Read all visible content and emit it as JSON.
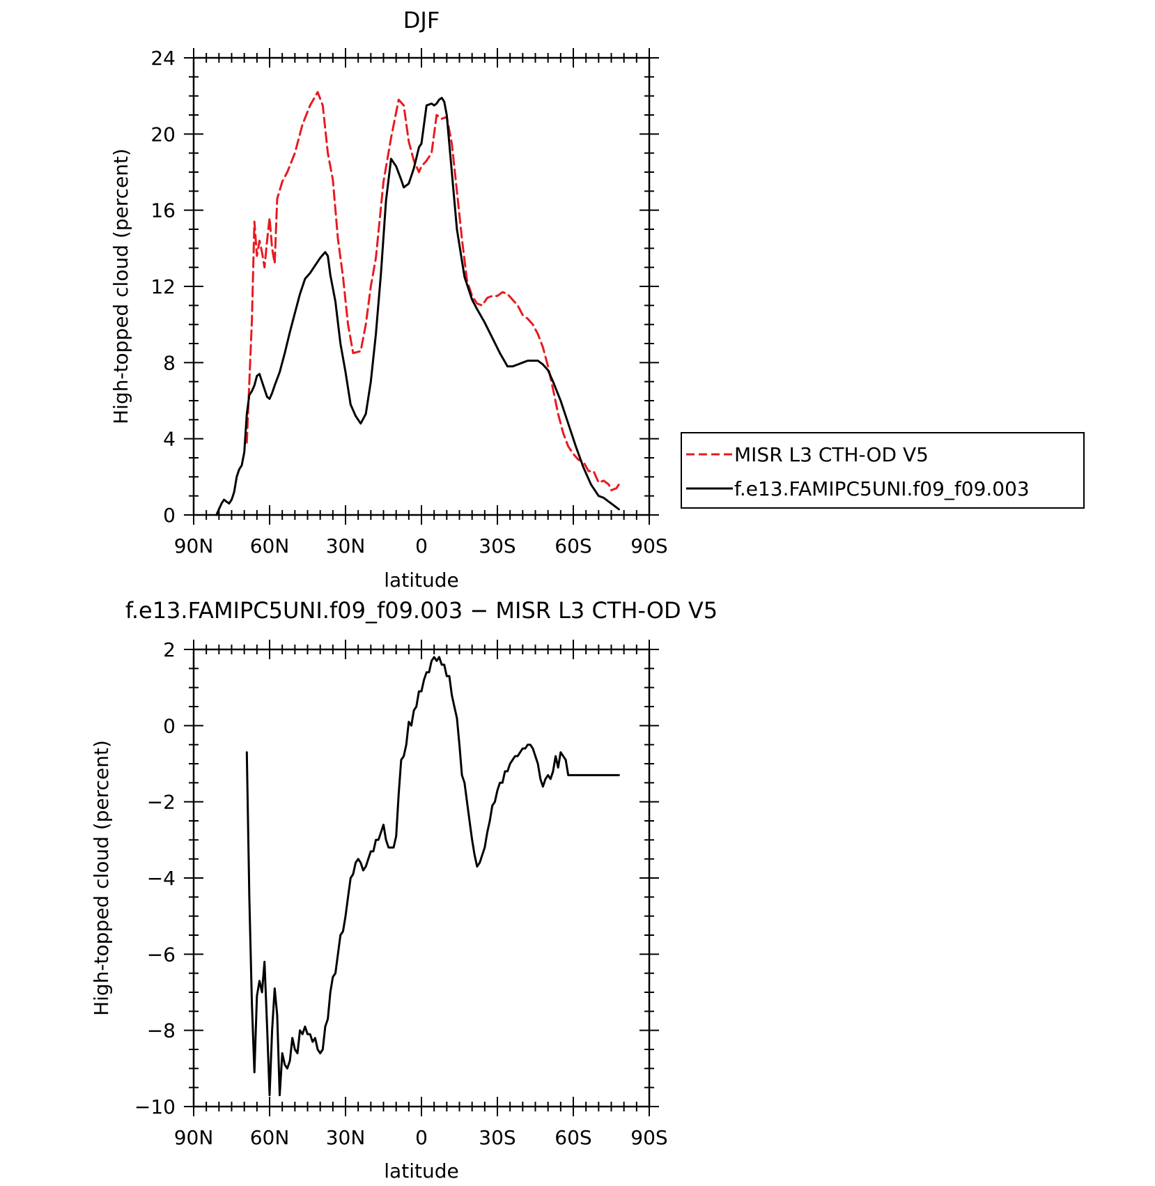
{
  "colors": {
    "model": "#000000",
    "obs": "#e8191f"
  },
  "chart_data": [
    {
      "type": "line",
      "title": "DJF",
      "xlabel": "latitude",
      "ylabel": "High-topped cloud (percent)",
      "xlim": [
        90,
        -90
      ],
      "ylim": [
        0,
        24
      ],
      "xticks": [
        90,
        60,
        30,
        0,
        -30,
        -60,
        -90
      ],
      "xtick_labels": [
        "90N",
        "60N",
        "30N",
        "0",
        "30S",
        "60S",
        "90S"
      ],
      "yticks": [
        0,
        4,
        8,
        12,
        16,
        20,
        24
      ],
      "ytick_labels": [
        "0",
        "4",
        "8",
        "12",
        "16",
        "20",
        "24"
      ],
      "legend": {
        "position": "right",
        "entries": [
          "MISR L3 CTH-OD V5",
          "f.e13.FAMIPC5UNI.f09_f09.003"
        ]
      },
      "series": [
        {
          "name": "MISR L3 CTH-OD V5",
          "color": "#e8191f",
          "style": "dashed",
          "x": [
            69,
            67,
            66,
            65,
            64,
            63,
            62,
            61,
            60,
            59,
            58,
            57,
            55,
            53,
            50,
            47,
            44,
            41,
            39,
            37,
            35,
            33,
            31,
            29,
            27,
            24,
            22,
            20,
            18,
            15,
            12,
            9,
            7,
            5,
            3,
            1,
            0,
            -2,
            -4,
            -6,
            -8,
            -10,
            -12,
            -14,
            -16,
            -18,
            -20,
            -22,
            -24,
            -26,
            -28,
            -30,
            -32,
            -34,
            -36,
            -38,
            -40,
            -42,
            -44,
            -46,
            -48,
            -50,
            -52,
            -54,
            -56,
            -58,
            -60,
            -62,
            -64,
            -66,
            -68,
            -70,
            -72,
            -74,
            -75,
            -77,
            -78
          ],
          "y": [
            3.8,
            10.2,
            15.4,
            13.6,
            14.4,
            13.8,
            13.0,
            14.4,
            15.6,
            14.0,
            13.2,
            16.6,
            17.5,
            18.0,
            19.0,
            20.5,
            21.5,
            22.2,
            21.5,
            19.0,
            17.6,
            14.5,
            12.5,
            10.0,
            8.5,
            8.6,
            10.0,
            12.0,
            13.5,
            17.5,
            19.8,
            21.8,
            21.5,
            19.6,
            18.6,
            18.0,
            18.3,
            18.6,
            19.0,
            21.0,
            20.8,
            20.9,
            19.5,
            17.0,
            14.5,
            12.3,
            11.5,
            11.1,
            11.0,
            11.4,
            11.5,
            11.5,
            11.7,
            11.6,
            11.3,
            11.0,
            10.5,
            10.3,
            10.0,
            9.5,
            8.8,
            7.8,
            6.6,
            5.3,
            4.3,
            3.6,
            3.2,
            2.9,
            2.8,
            2.3,
            2.3,
            1.7,
            1.8,
            1.6,
            1.3,
            1.4,
            1.6
          ]
        },
        {
          "name": "f.e13.FAMIPC5UNI.f09_f09.003",
          "color": "#000000",
          "style": "solid",
          "x": [
            81,
            80,
            79,
            78,
            77,
            76,
            75,
            74,
            73,
            72,
            71,
            70,
            69,
            68,
            67,
            66,
            65,
            64,
            63,
            61,
            60,
            59,
            58,
            56,
            54,
            52,
            50,
            48,
            46,
            44,
            42,
            40,
            38,
            37,
            36,
            34,
            32,
            30,
            28,
            26,
            24,
            22,
            20,
            18,
            16,
            14,
            12,
            10,
            8,
            7,
            5,
            3,
            1,
            0,
            -2,
            -4,
            -5,
            -6,
            -7,
            -8,
            -9,
            -10,
            -12,
            -14,
            -17,
            -20,
            -22,
            -25,
            -28,
            -31,
            -34,
            -36,
            -38,
            -40,
            -42,
            -44,
            -46,
            -48,
            -50,
            -52,
            -55,
            -58,
            -61,
            -64,
            -67,
            -70,
            -72,
            -74,
            -76,
            -78
          ],
          "y": [
            0.0,
            0.3,
            0.6,
            0.8,
            0.7,
            0.6,
            0.8,
            1.2,
            2.0,
            2.4,
            2.6,
            3.3,
            5.3,
            6.3,
            6.5,
            6.8,
            7.3,
            7.4,
            7.0,
            6.2,
            6.1,
            6.4,
            6.8,
            7.5,
            8.5,
            9.6,
            10.6,
            11.6,
            12.4,
            12.7,
            13.1,
            13.5,
            13.8,
            13.6,
            12.6,
            11.2,
            9.0,
            7.5,
            5.8,
            5.2,
            4.8,
            5.3,
            7.0,
            9.5,
            12.7,
            16.5,
            18.7,
            18.3,
            17.6,
            17.2,
            17.4,
            18.2,
            19.3,
            19.5,
            21.5,
            21.6,
            21.5,
            21.6,
            21.8,
            21.9,
            21.7,
            21.0,
            18.0,
            15.0,
            12.5,
            11.3,
            10.8,
            10.1,
            9.3,
            8.5,
            7.8,
            7.8,
            7.9,
            8.0,
            8.1,
            8.1,
            8.1,
            7.9,
            7.6,
            7.0,
            6.0,
            4.8,
            3.6,
            2.5,
            1.6,
            1.0,
            0.9,
            0.7,
            0.5,
            0.3
          ]
        }
      ]
    },
    {
      "type": "line",
      "title": "f.e13.FAMIPC5UNI.f09_f09.003 − MISR L3 CTH-OD V5",
      "xlabel": "latitude",
      "ylabel": "High-topped cloud (percent)",
      "xlim": [
        90,
        -90
      ],
      "ylim": [
        -10,
        2
      ],
      "xticks": [
        90,
        60,
        30,
        0,
        -30,
        -60,
        -90
      ],
      "xtick_labels": [
        "90N",
        "60N",
        "30N",
        "0",
        "30S",
        "60S",
        "90S"
      ],
      "yticks": [
        2,
        0,
        -2,
        -4,
        -6,
        -8,
        -10
      ],
      "ytick_labels": [
        "2",
        "0",
        "−2",
        "−4",
        "−6",
        "−8",
        "−10"
      ],
      "series": [
        {
          "color": "#000000",
          "style": "solid",
          "x": [
            69,
            68,
            67,
            66,
            65,
            64,
            63,
            62,
            61,
            60,
            59,
            58,
            57,
            56,
            55,
            54,
            53,
            52,
            51,
            50,
            49,
            48,
            47,
            46,
            45,
            44,
            43,
            42,
            41,
            40,
            39,
            38,
            37,
            36,
            35,
            34,
            33,
            32,
            31,
            30,
            29,
            28,
            27,
            26,
            25,
            24,
            23,
            22,
            21,
            20,
            19,
            18,
            17,
            16,
            15,
            14,
            13,
            12,
            11,
            10,
            9,
            8,
            7,
            6,
            5,
            4,
            3,
            2,
            1,
            0,
            -1,
            -2,
            -3,
            -4,
            -5,
            -6,
            -7,
            -8,
            -9,
            -10,
            -11,
            -12,
            -13,
            -14,
            -15,
            -16,
            -17,
            -18,
            -19,
            -20,
            -21,
            -22,
            -23,
            -24,
            -25,
            -26,
            -27,
            -28,
            -29,
            -30,
            -31,
            -32,
            -33,
            -34,
            -35,
            -36,
            -37,
            -38,
            -39,
            -40,
            -41,
            -42,
            -43,
            -44,
            -45,
            -46,
            -47,
            -48,
            -49,
            -50,
            -51,
            -52,
            -53,
            -54,
            -55,
            -56,
            -57,
            -58,
            -59,
            -60,
            -61,
            -62,
            -63,
            -64,
            -65,
            -66,
            -67,
            -68,
            -69,
            -70,
            -71,
            -72,
            -73,
            -74,
            -75,
            -76,
            -77,
            -78
          ],
          "y": [
            -0.7,
            -4.5,
            -7.3,
            -9.1,
            -7.1,
            -6.7,
            -7.0,
            -6.2,
            -7.9,
            -9.7,
            -8.0,
            -6.9,
            -7.6,
            -9.7,
            -8.6,
            -8.9,
            -9.0,
            -8.8,
            -8.2,
            -8.5,
            -8.6,
            -8.0,
            -8.1,
            -7.9,
            -8.1,
            -8.1,
            -8.3,
            -8.2,
            -8.5,
            -8.6,
            -8.5,
            -7.9,
            -7.7,
            -7.0,
            -6.6,
            -6.5,
            -6.0,
            -5.5,
            -5.4,
            -5.0,
            -4.5,
            -4.0,
            -3.9,
            -3.6,
            -3.5,
            -3.6,
            -3.8,
            -3.7,
            -3.5,
            -3.3,
            -3.3,
            -3.0,
            -3.0,
            -2.8,
            -2.6,
            -3.0,
            -3.2,
            -3.2,
            -3.2,
            -2.9,
            -1.8,
            -0.9,
            -0.8,
            -0.5,
            0.1,
            0.0,
            0.4,
            0.5,
            0.9,
            0.9,
            1.2,
            1.4,
            1.4,
            1.7,
            1.8,
            1.7,
            1.8,
            1.6,
            1.6,
            1.3,
            1.3,
            0.8,
            0.5,
            0.2,
            -0.5,
            -1.3,
            -1.5,
            -2.0,
            -2.5,
            -3.0,
            -3.4,
            -3.7,
            -3.6,
            -3.4,
            -3.2,
            -2.8,
            -2.5,
            -2.1,
            -2.0,
            -1.7,
            -1.5,
            -1.5,
            -1.2,
            -1.2,
            -1.0,
            -0.9,
            -0.8,
            -0.8,
            -0.7,
            -0.6,
            -0.6,
            -0.5,
            -0.5,
            -0.6,
            -0.8,
            -1.0,
            -1.4,
            -1.6,
            -1.4,
            -1.3,
            -1.4,
            -1.2,
            -0.8,
            -1.1,
            -0.7,
            -0.8,
            -0.9,
            -1.3,
            -1.3,
            -1.3,
            -1.3,
            -1.3,
            -1.3,
            -1.3,
            -1.3,
            -1.3,
            -1.3,
            -1.3,
            -1.3,
            -1.3,
            -1.3,
            -1.3,
            -1.3,
            -1.3,
            -1.3,
            -1.3,
            -1.3,
            -1.3
          ]
        }
      ]
    }
  ]
}
